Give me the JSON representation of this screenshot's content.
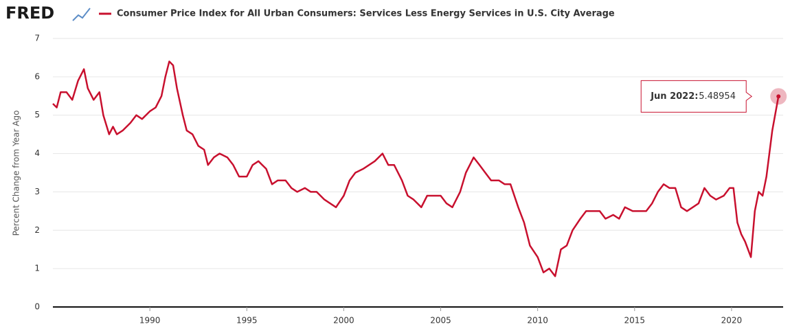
{
  "logo": "FRED",
  "chart_data": {
    "type": "line",
    "title": "Consumer Price Index for All Urban Consumers: Services Less Energy Services in U.S. City Average",
    "ylabel": "Percent Change from Year Ago",
    "annotation": "Jun 2022:",
    "xlim": [
      1985,
      2022.66
    ],
    "xticks": [
      1990,
      1995,
      2000,
      2005,
      2010,
      2015,
      2020
    ],
    "ylim": [
      0,
      7
    ],
    "yticks": [
      0,
      1,
      2,
      3,
      4,
      5,
      6,
      7
    ],
    "grid": true,
    "x": [
      1985.0,
      1985.2,
      1985.4,
      1985.7,
      1986.0,
      1986.3,
      1986.6,
      1986.8,
      1987.1,
      1987.4,
      1987.6,
      1987.9,
      1988.1,
      1988.3,
      1988.6,
      1989.0,
      1989.3,
      1989.6,
      1990.0,
      1990.3,
      1990.6,
      1990.8,
      1991.0,
      1991.2,
      1991.4,
      1991.7,
      1991.9,
      1992.2,
      1992.5,
      1992.8,
      1993.0,
      1993.3,
      1993.6,
      1994.0,
      1994.3,
      1994.6,
      1995.0,
      1995.3,
      1995.6,
      1996.0,
      1996.3,
      1996.6,
      1997.0,
      1997.3,
      1997.6,
      1998.0,
      1998.3,
      1998.6,
      1999.0,
      1999.3,
      1999.6,
      2000.0,
      2000.3,
      2000.6,
      2001.0,
      2001.3,
      2001.6,
      2002.0,
      2002.3,
      2002.6,
      2003.0,
      2003.3,
      2003.6,
      2004.0,
      2004.3,
      2004.6,
      2005.0,
      2005.3,
      2005.6,
      2006.0,
      2006.3,
      2006.7,
      2007.0,
      2007.3,
      2007.6,
      2008.0,
      2008.3,
      2008.6,
      2009.0,
      2009.3,
      2009.6,
      2010.0,
      2010.3,
      2010.6,
      2010.9,
      2011.2,
      2011.5,
      2011.8,
      2012.2,
      2012.5,
      2012.9,
      2013.2,
      2013.5,
      2013.9,
      2014.2,
      2014.5,
      2014.9,
      2015.2,
      2015.6,
      2015.9,
      2016.2,
      2016.5,
      2016.8,
      2017.1,
      2017.4,
      2017.7,
      2018.0,
      2018.3,
      2018.6,
      2018.9,
      2019.2,
      2019.6,
      2019.9,
      2020.1,
      2020.3,
      2020.5,
      2020.7,
      2021.0,
      2021.2,
      2021.4,
      2021.6,
      2021.8,
      2022.1,
      2022.42
    ],
    "series": [
      {
        "name": "Consumer Price Index for All Urban Consumers: Services Less Energy Services in U.S. City Average",
        "color": "#c8102e",
        "values": [
          5.3,
          5.2,
          5.6,
          5.6,
          5.4,
          5.9,
          6.2,
          5.7,
          5.4,
          5.6,
          5.0,
          4.5,
          4.7,
          4.5,
          4.6,
          4.8,
          5.0,
          4.9,
          5.1,
          5.2,
          5.5,
          6.0,
          6.4,
          6.3,
          5.7,
          5.0,
          4.6,
          4.5,
          4.2,
          4.1,
          3.7,
          3.9,
          4.0,
          3.9,
          3.7,
          3.4,
          3.4,
          3.7,
          3.8,
          3.6,
          3.2,
          3.3,
          3.3,
          3.1,
          3.0,
          3.1,
          3.0,
          3.0,
          2.8,
          2.7,
          2.6,
          2.9,
          3.3,
          3.5,
          3.6,
          3.7,
          3.8,
          4.0,
          3.7,
          3.7,
          3.3,
          2.9,
          2.8,
          2.6,
          2.9,
          2.9,
          2.9,
          2.7,
          2.6,
          3.0,
          3.5,
          3.9,
          3.7,
          3.5,
          3.3,
          3.3,
          3.2,
          3.2,
          2.6,
          2.2,
          1.6,
          1.3,
          0.9,
          1.0,
          0.8,
          1.5,
          1.6,
          2.0,
          2.3,
          2.5,
          2.5,
          2.5,
          2.3,
          2.4,
          2.3,
          2.6,
          2.5,
          2.5,
          2.5,
          2.7,
          3.0,
          3.2,
          3.1,
          3.1,
          2.6,
          2.5,
          2.6,
          2.7,
          3.1,
          2.9,
          2.8,
          2.9,
          3.1,
          3.1,
          2.2,
          1.9,
          1.7,
          1.3,
          2.5,
          3.0,
          2.9,
          3.4,
          4.6,
          5.48954
        ]
      }
    ]
  }
}
